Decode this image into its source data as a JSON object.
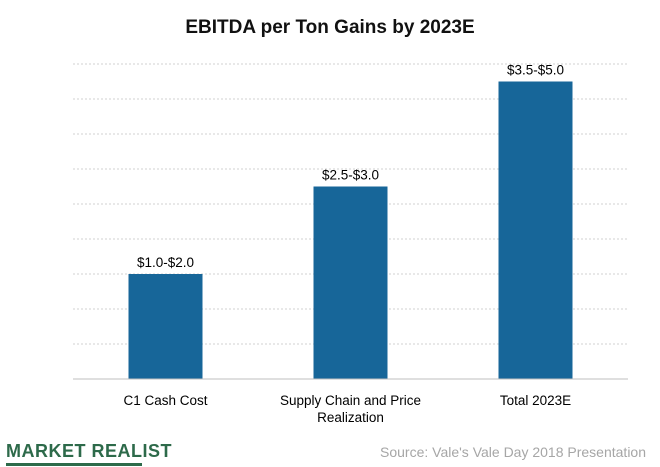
{
  "chart_data": {
    "type": "bar",
    "title": "EBITDA per Ton Gains by 2023E",
    "xlabel": "",
    "ylabel": "",
    "categories": [
      "C1 Cash Cost",
      "Supply Chain and Price Realization",
      "Total 2023E"
    ],
    "category_lines": [
      [
        "C1 Cash Cost"
      ],
      [
        "Supply Chain and Price",
        "Realization"
      ],
      [
        "Total 2023E"
      ]
    ],
    "values": [
      1.5,
      2.75,
      4.25
    ],
    "data_labels": [
      "$1.0-$2.0",
      "$2.5-$3.0",
      "$3.5-$5.0"
    ],
    "ylim": [
      0,
      4.5
    ],
    "grid": true,
    "bar_color": "#176699",
    "grid_color": "#d0d0d0"
  },
  "footer": {
    "brand": "MARKET REALIST",
    "source": "Source: Vale's Vale Day 2018 Presentation"
  }
}
